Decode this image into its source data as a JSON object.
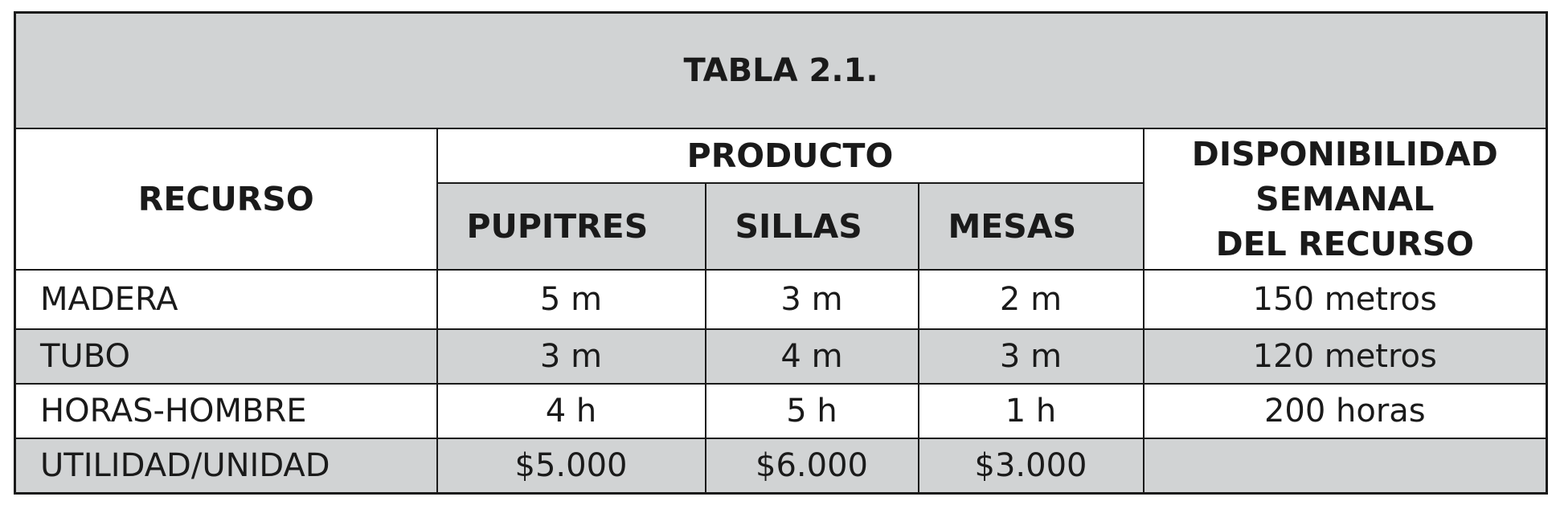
{
  "title": "TABLA 2.1.",
  "headers": {
    "recurso": "RECURSO",
    "producto": "PRODUCTO",
    "productos": [
      "PUPITRES",
      "SILLAS",
      "MESAS"
    ],
    "disponibilidad": [
      "DISPONIBILIDAD",
      "SEMANAL",
      "DEL RECURSO"
    ]
  },
  "rows": [
    {
      "recurso": "MADERA",
      "pupitres": "5 m",
      "sillas": "3 m",
      "mesas": "2 m",
      "disponibilidad": "150 metros"
    },
    {
      "recurso": "TUBO",
      "pupitres": "3 m",
      "sillas": "4 m",
      "mesas": "3 m",
      "disponibilidad": "120 metros"
    },
    {
      "recurso": "HORAS-HOMBRE",
      "pupitres": "4 h",
      "sillas": "5 h",
      "mesas": "1 h",
      "disponibilidad": "200 horas"
    },
    {
      "recurso": "UTILIDAD/UNIDAD",
      "pupitres": "$5.000",
      "sillas": "$6.000",
      "mesas": "$3.000",
      "disponibilidad": ""
    }
  ],
  "colors": {
    "header_gray": "#d1d3d4",
    "border": "#1a1a1a"
  }
}
